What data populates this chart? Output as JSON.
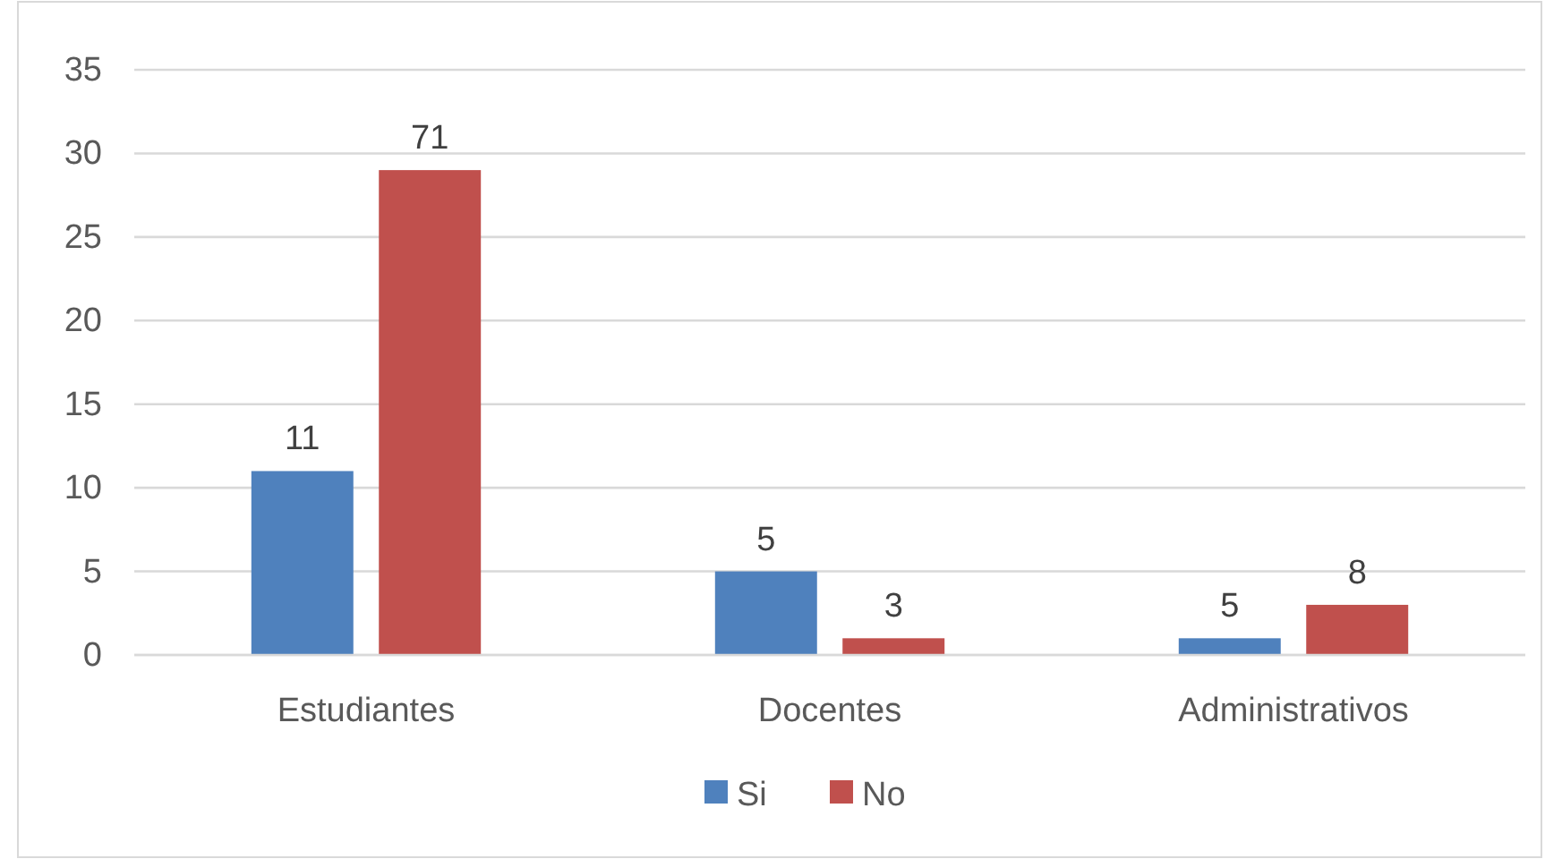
{
  "chart_data": {
    "type": "bar",
    "categories": [
      "Estudiantes",
      "Docentes",
      "Administrativos"
    ],
    "series": [
      {
        "name": "Si",
        "color": "#4f81bd",
        "values": [
          11,
          5,
          1
        ]
      },
      {
        "name": "No",
        "color": "#c0504d",
        "values": [
          29,
          1,
          3
        ]
      }
    ],
    "annotations": [
      "11",
      "71",
      "5",
      "3",
      "5",
      "8"
    ],
    "ylim": [
      0,
      35
    ],
    "yticks": [
      0,
      5,
      10,
      15,
      20,
      25,
      30,
      35
    ],
    "grid": "y",
    "legend": "bottom"
  }
}
